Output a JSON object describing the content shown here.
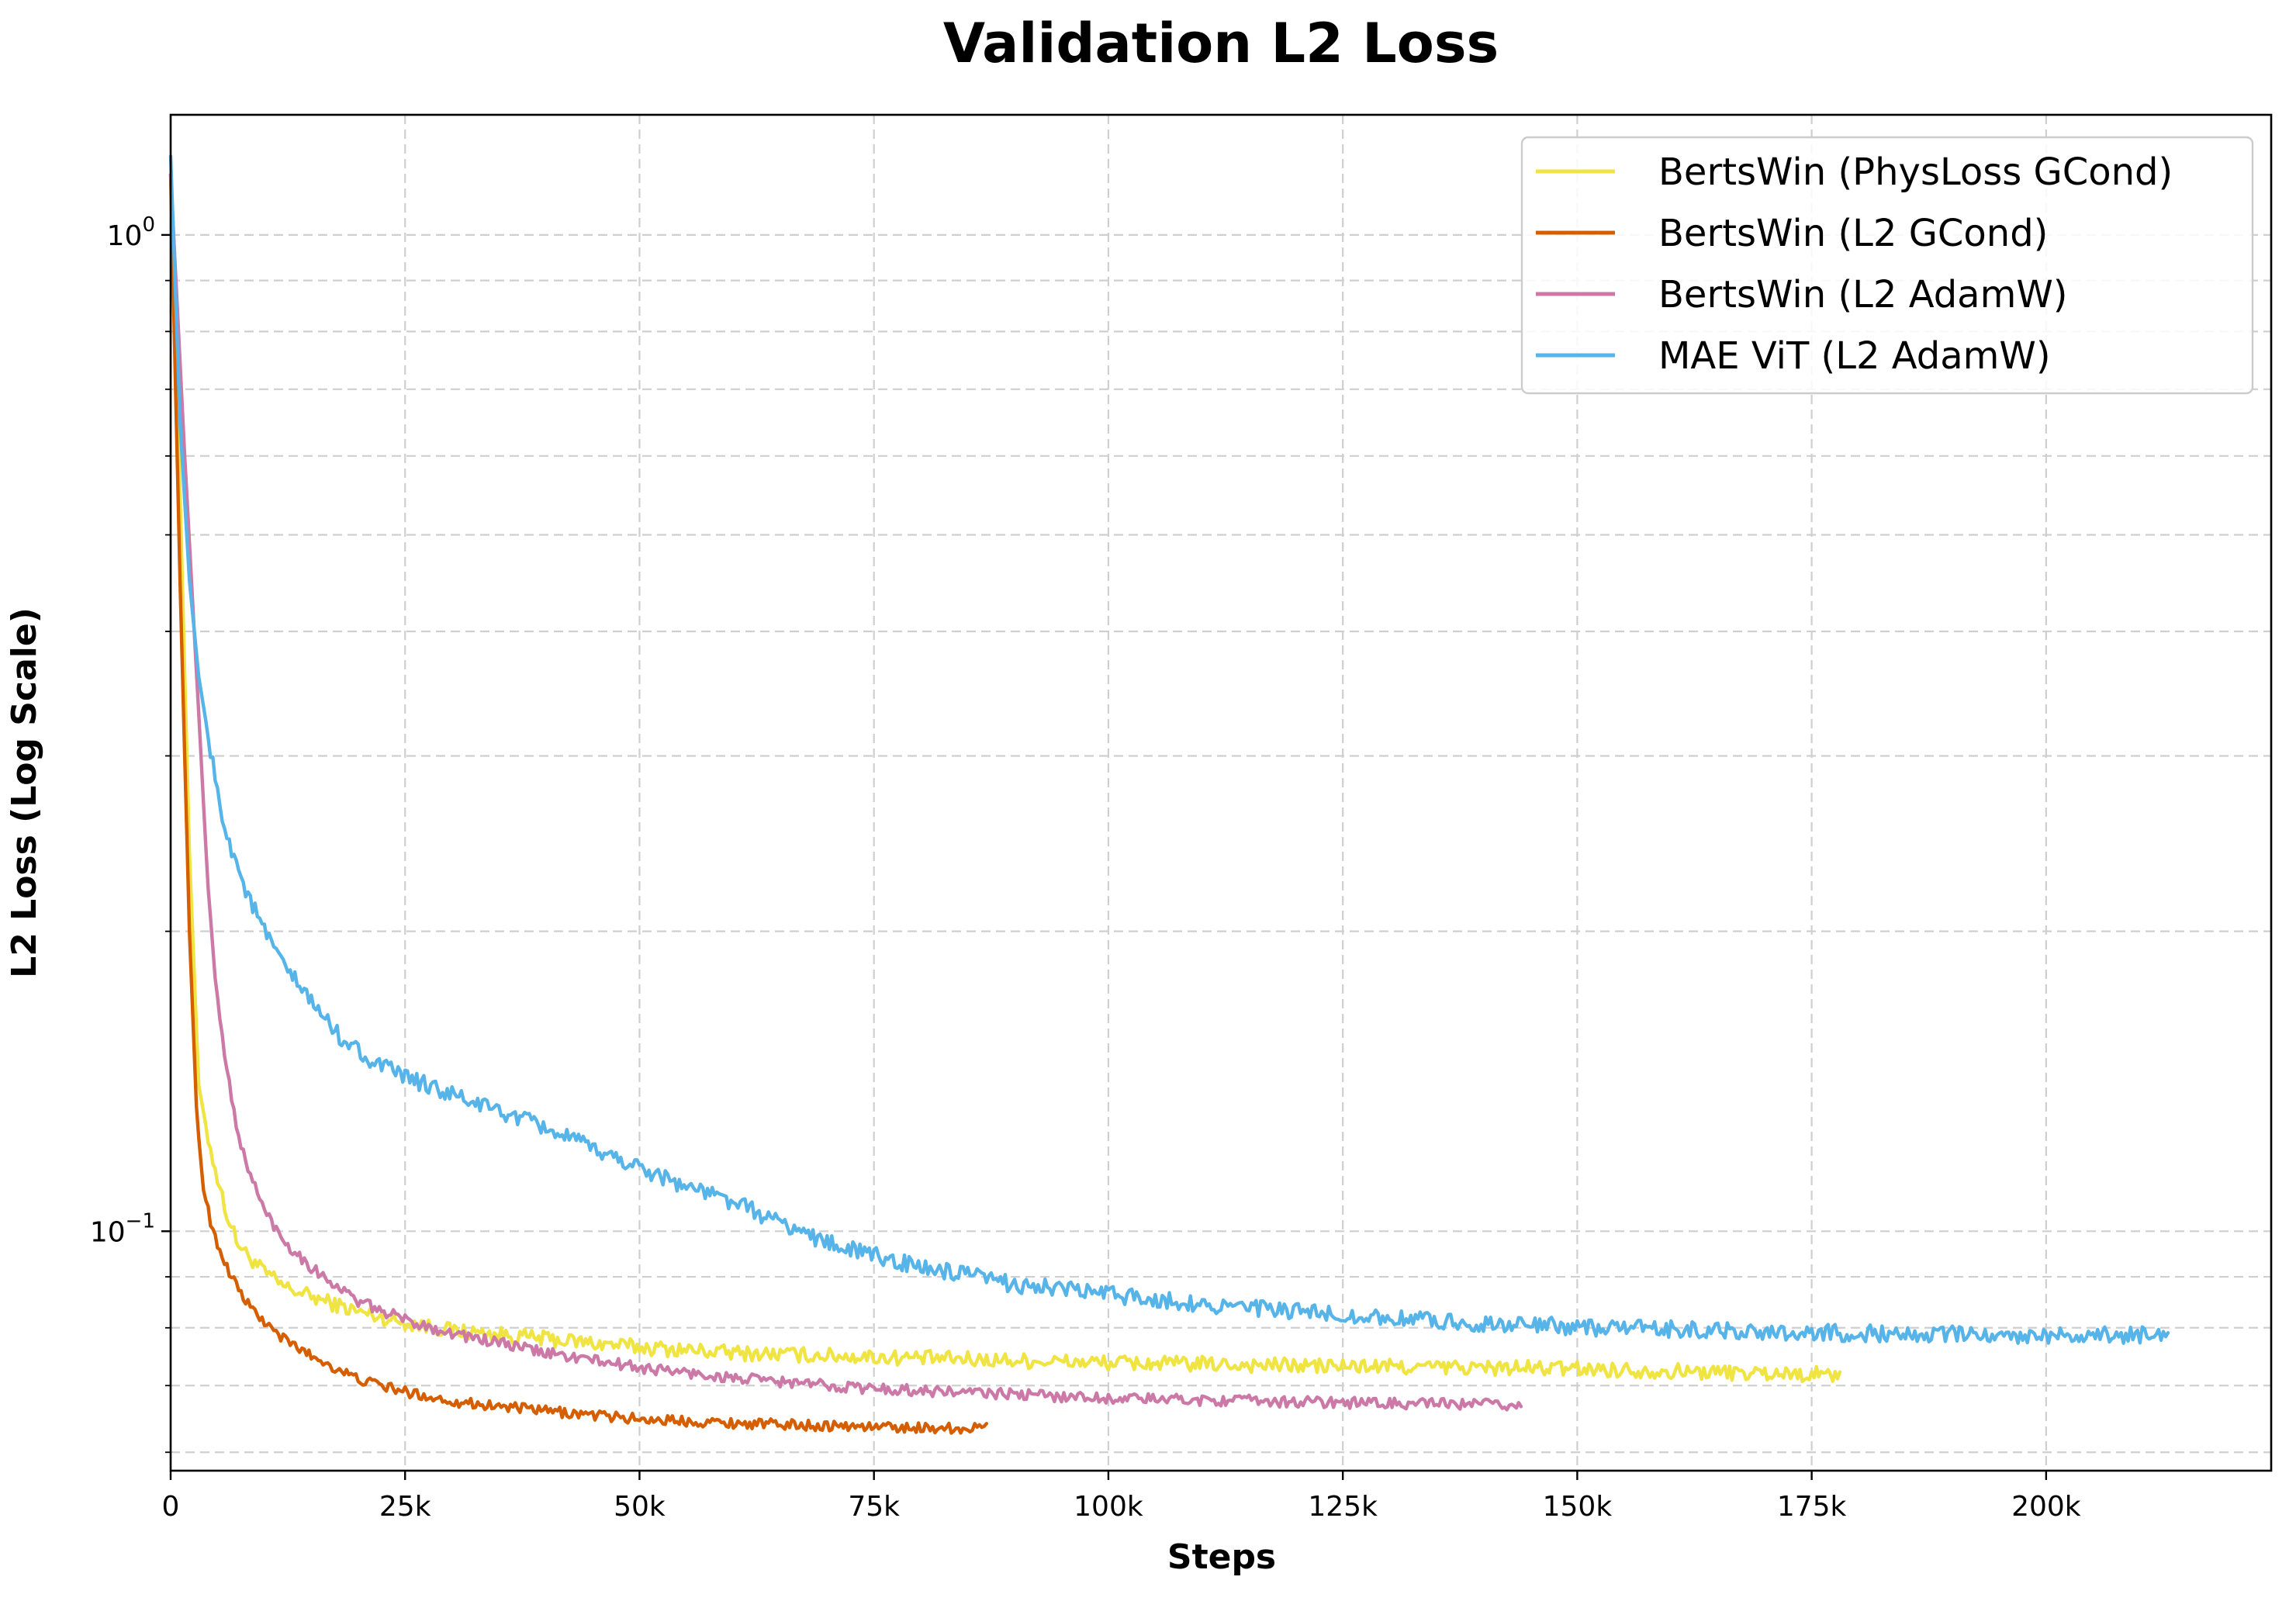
{
  "chart_data": {
    "type": "line",
    "title": "Validation L2 Loss",
    "xlabel": "Steps",
    "ylabel": "L2 Loss (Log Scale)",
    "yscale": "log",
    "xlim": [
      0,
      224000
    ],
    "ylim": [
      0.0575,
      1.32
    ],
    "x_ticks": [
      0,
      25000,
      50000,
      75000,
      100000,
      125000,
      150000,
      175000,
      200000
    ],
    "x_tick_labels": [
      "0",
      "25k",
      "50k",
      "75k",
      "100k",
      "125k",
      "150k",
      "175k",
      "200k"
    ],
    "y_major_ticks": [
      {
        "value": 1.0,
        "base": "10",
        "exp": "0"
      },
      {
        "value": 0.1,
        "base": "10",
        "exp": "−1"
      }
    ],
    "y_minor_ticks": [
      0.06,
      0.07,
      0.08,
      0.09,
      0.2,
      0.3,
      0.4,
      0.5,
      0.6,
      0.7,
      0.8,
      0.9
    ],
    "grid": true,
    "legend_position": "top-right",
    "series": [
      {
        "name": "BertsWin (PhysLoss GCond)",
        "color": "#f0e442",
        "noise": 0.018,
        "x": [
          0,
          1000,
          2000,
          3000,
          4000,
          5000,
          6000,
          7000,
          8000,
          10000,
          12000,
          15000,
          20000,
          25000,
          30000,
          40000,
          50000,
          60000,
          75000,
          100000,
          125000,
          150000,
          165000,
          178000
        ],
        "y": [
          1.15,
          0.55,
          0.24,
          0.14,
          0.124,
          0.113,
          0.104,
          0.098,
          0.095,
          0.091,
          0.088,
          0.086,
          0.083,
          0.081,
          0.0795,
          0.078,
          0.0765,
          0.0755,
          0.0748,
          0.0738,
          0.0732,
          0.0728,
          0.0722,
          0.0718
        ]
      },
      {
        "name": "BertsWin (L2 GCond)",
        "color": "#d55e00",
        "noise": 0.012,
        "x": [
          0,
          1000,
          2000,
          2800,
          3500,
          4500,
          6000,
          8000,
          10000,
          12000,
          15000,
          20000,
          25000,
          30000,
          40000,
          50000,
          60000,
          70000,
          80000,
          87000
        ],
        "y": [
          1.15,
          0.45,
          0.2,
          0.13,
          0.11,
          0.1,
          0.092,
          0.085,
          0.081,
          0.078,
          0.075,
          0.071,
          0.069,
          0.0675,
          0.066,
          0.0648,
          0.0642,
          0.0638,
          0.0635,
          0.0634
        ]
      },
      {
        "name": "BertsWin (L2 AdamW)",
        "color": "#cc79a7",
        "noise": 0.013,
        "x": [
          0,
          1500,
          3000,
          4000,
          5000,
          6000,
          7000,
          8000,
          10000,
          12000,
          15000,
          20000,
          25000,
          30000,
          40000,
          50000,
          60000,
          75000,
          100000,
          125000,
          144000
        ],
        "y": [
          1.15,
          0.6,
          0.33,
          0.22,
          0.17,
          0.145,
          0.128,
          0.117,
          0.105,
          0.098,
          0.092,
          0.085,
          0.0815,
          0.079,
          0.0755,
          0.073,
          0.0712,
          0.0695,
          0.068,
          0.0673,
          0.0669
        ]
      },
      {
        "name": "MAE ViT (L2 AdamW)",
        "color": "#56b4e9",
        "noise": 0.02,
        "x": [
          0,
          1000,
          2000,
          3000,
          5000,
          6000,
          8000,
          10000,
          12000,
          15000,
          18000,
          22000,
          25000,
          30000,
          35000,
          40000,
          45000,
          50000,
          55000,
          60000,
          65000,
          70000,
          75000,
          80000,
          90000,
          100000,
          110000,
          120000,
          130000,
          140000,
          150000,
          160000,
          170000,
          180000,
          190000,
          200000,
          213000
        ],
        "y": [
          1.2,
          0.65,
          0.45,
          0.36,
          0.275,
          0.25,
          0.22,
          0.2,
          0.185,
          0.17,
          0.157,
          0.147,
          0.143,
          0.137,
          0.132,
          0.127,
          0.121,
          0.116,
          0.111,
          0.107,
          0.102,
          0.0975,
          0.0945,
          0.092,
          0.0885,
          0.0865,
          0.0845,
          0.083,
          0.0818,
          0.0808,
          0.0802,
          0.0797,
          0.0793,
          0.079,
          0.0788,
          0.0787,
          0.0787
        ]
      }
    ]
  }
}
